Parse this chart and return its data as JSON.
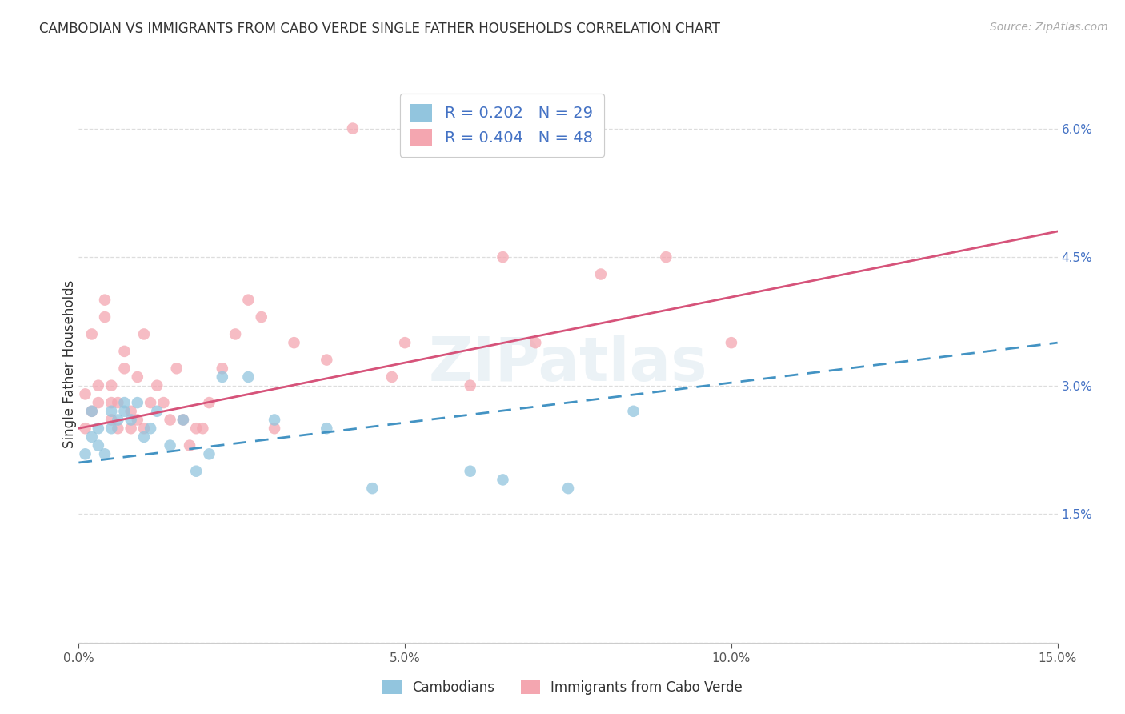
{
  "title": "CAMBODIAN VS IMMIGRANTS FROM CABO VERDE SINGLE FATHER HOUSEHOLDS CORRELATION CHART",
  "source": "Source: ZipAtlas.com",
  "ylabel": "Single Father Households",
  "watermark": "ZIPatlas",
  "xmin": 0.0,
  "xmax": 0.15,
  "ymin": 0.0,
  "ymax": 0.065,
  "yticks": [
    0.0,
    0.015,
    0.03,
    0.045,
    0.06
  ],
  "ytick_labels": [
    "",
    "1.5%",
    "3.0%",
    "4.5%",
    "6.0%"
  ],
  "xticks": [
    0.0,
    0.05,
    0.1,
    0.15
  ],
  "xtick_labels": [
    "0.0%",
    "5.0%",
    "10.0%",
    "15.0%"
  ],
  "legend_labels": [
    "Cambodians",
    "Immigrants from Cabo Verde"
  ],
  "R_cambodian": 0.202,
  "N_cambodian": 29,
  "R_caboverde": 0.404,
  "N_caboverde": 48,
  "blue_color": "#92c5de",
  "pink_color": "#f4a6b0",
  "blue_line_color": "#4393c3",
  "pink_line_color": "#d6537a",
  "cam_x": [
    0.001,
    0.002,
    0.002,
    0.003,
    0.003,
    0.004,
    0.005,
    0.005,
    0.006,
    0.007,
    0.007,
    0.008,
    0.009,
    0.01,
    0.011,
    0.012,
    0.014,
    0.016,
    0.018,
    0.02,
    0.022,
    0.026,
    0.03,
    0.038,
    0.045,
    0.06,
    0.065,
    0.075,
    0.085
  ],
  "cam_y": [
    0.022,
    0.024,
    0.027,
    0.023,
    0.025,
    0.022,
    0.025,
    0.027,
    0.026,
    0.027,
    0.028,
    0.026,
    0.028,
    0.024,
    0.025,
    0.027,
    0.023,
    0.026,
    0.02,
    0.022,
    0.031,
    0.031,
    0.026,
    0.025,
    0.018,
    0.02,
    0.019,
    0.018,
    0.027
  ],
  "cv_x": [
    0.001,
    0.001,
    0.002,
    0.002,
    0.003,
    0.003,
    0.004,
    0.004,
    0.005,
    0.005,
    0.005,
    0.006,
    0.006,
    0.007,
    0.007,
    0.008,
    0.008,
    0.009,
    0.009,
    0.01,
    0.01,
    0.011,
    0.012,
    0.013,
    0.014,
    0.015,
    0.016,
    0.017,
    0.018,
    0.019,
    0.02,
    0.022,
    0.024,
    0.026,
    0.028,
    0.03,
    0.033,
    0.038,
    0.042,
    0.048,
    0.05,
    0.055,
    0.06,
    0.065,
    0.07,
    0.08,
    0.09,
    0.1
  ],
  "cv_y": [
    0.025,
    0.029,
    0.027,
    0.036,
    0.028,
    0.03,
    0.04,
    0.038,
    0.026,
    0.028,
    0.03,
    0.028,
    0.025,
    0.032,
    0.034,
    0.025,
    0.027,
    0.031,
    0.026,
    0.036,
    0.025,
    0.028,
    0.03,
    0.028,
    0.026,
    0.032,
    0.026,
    0.023,
    0.025,
    0.025,
    0.028,
    0.032,
    0.036,
    0.04,
    0.038,
    0.025,
    0.035,
    0.033,
    0.06,
    0.031,
    0.035,
    0.059,
    0.03,
    0.045,
    0.035,
    0.043,
    0.045,
    0.035
  ],
  "blue_line_start_y": 0.021,
  "blue_line_end_y": 0.035,
  "pink_line_start_y": 0.025,
  "pink_line_end_y": 0.048
}
